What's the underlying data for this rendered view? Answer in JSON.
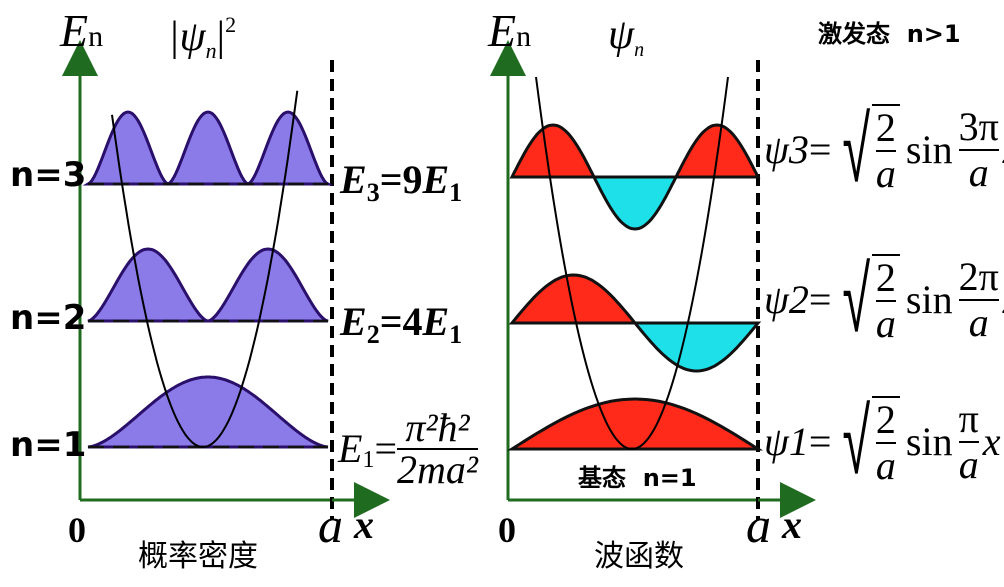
{
  "left_panel": {
    "y_axis_symbol": "E",
    "y_axis_sub": "n",
    "title_pre": "|ψ",
    "title_sub": "n",
    "title_post": "|",
    "title_sup": "2",
    "levels": [
      {
        "n_label": "n=3",
        "energy": "E3=9E1"
      },
      {
        "n_label": "n=2",
        "energy": "E2=4E1"
      },
      {
        "n_label": "n=1",
        "energy": "E1=π²ħ²/2ma²"
      }
    ],
    "x_origin": "0",
    "x_end": "a",
    "x_axis_symbol": "x",
    "caption": "概率密度",
    "fill_color": "#8b7be8"
  },
  "right_panel": {
    "y_axis_symbol": "E",
    "y_axis_sub": "n",
    "title": "ψ",
    "title_sub": "n",
    "excited_label": "激发态  n>1",
    "ground_label": "基态  n=1",
    "x_origin": "0",
    "x_end": "a",
    "x_axis_symbol": "x",
    "caption": "波函数",
    "positive_color": "#ff2a1a",
    "negative_color": "#1ee0e8",
    "wavefunctions": [
      {
        "psi": "ψ3",
        "factor_top": "3π"
      },
      {
        "psi": "ψ2",
        "factor_top": "2π"
      },
      {
        "psi": "ψ1",
        "factor_top": "π"
      }
    ],
    "norm_top": "2",
    "norm_bottom": "a",
    "sin": "sin",
    "denominator": "a",
    "variable": "x"
  },
  "energy_labels": {
    "e3_sym": "E",
    "e3_sub": "3",
    "e3_eq": "=9",
    "e3_rhs": "E",
    "e3_rhs_sub": "1",
    "e2_sym": "E",
    "e2_sub": "2",
    "e2_eq": "=4",
    "e2_rhs": "E",
    "e2_rhs_sub": "1",
    "e1_sym": "E",
    "e1_sub": "1",
    "e1_eq": "=",
    "e1_num": "π²ħ²",
    "e1_den": "2ma²"
  }
}
